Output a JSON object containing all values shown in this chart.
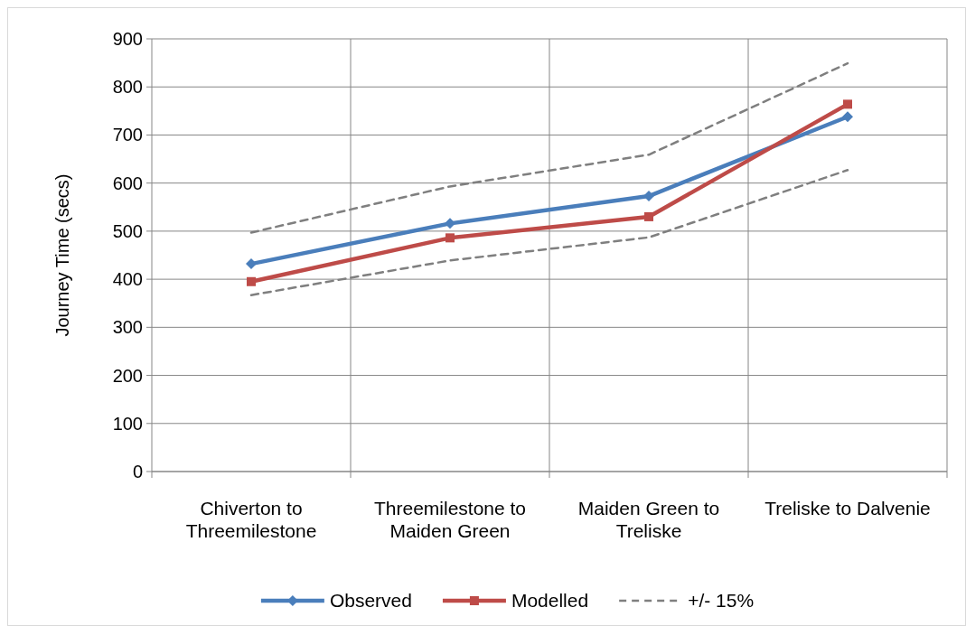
{
  "chart_data": {
    "type": "line",
    "ylabel": "Journey Time (secs)",
    "categories": [
      "Chiverton to Threemilestone",
      "Threemilestone to Maiden Green",
      "Maiden Green to Treliske",
      "Treliske to Dalvenie"
    ],
    "series": [
      {
        "name": "Observed",
        "color": "#4a7ebb",
        "values": [
          432,
          516,
          573,
          738
        ],
        "marker": "diamond",
        "line_style": "solid"
      },
      {
        "name": "Modelled",
        "color": "#be4b48",
        "values": [
          395,
          486,
          530,
          764
        ],
        "marker": "square",
        "line_style": "solid"
      },
      {
        "name": "+/- 15%",
        "color": "#7f7f7f",
        "values": [
          497,
          593,
          659,
          849
        ],
        "marker": "none",
        "line_style": "dashed"
      },
      {
        "color": "#7f7f7f",
        "values": [
          367,
          439,
          487,
          627
        ],
        "marker": "none",
        "line_style": "dashed"
      }
    ],
    "ylim": [
      0,
      900
    ],
    "yticks": [
      0,
      100,
      200,
      300,
      400,
      500,
      600,
      700,
      800,
      900
    ],
    "grid": true,
    "legend": "bottom"
  }
}
